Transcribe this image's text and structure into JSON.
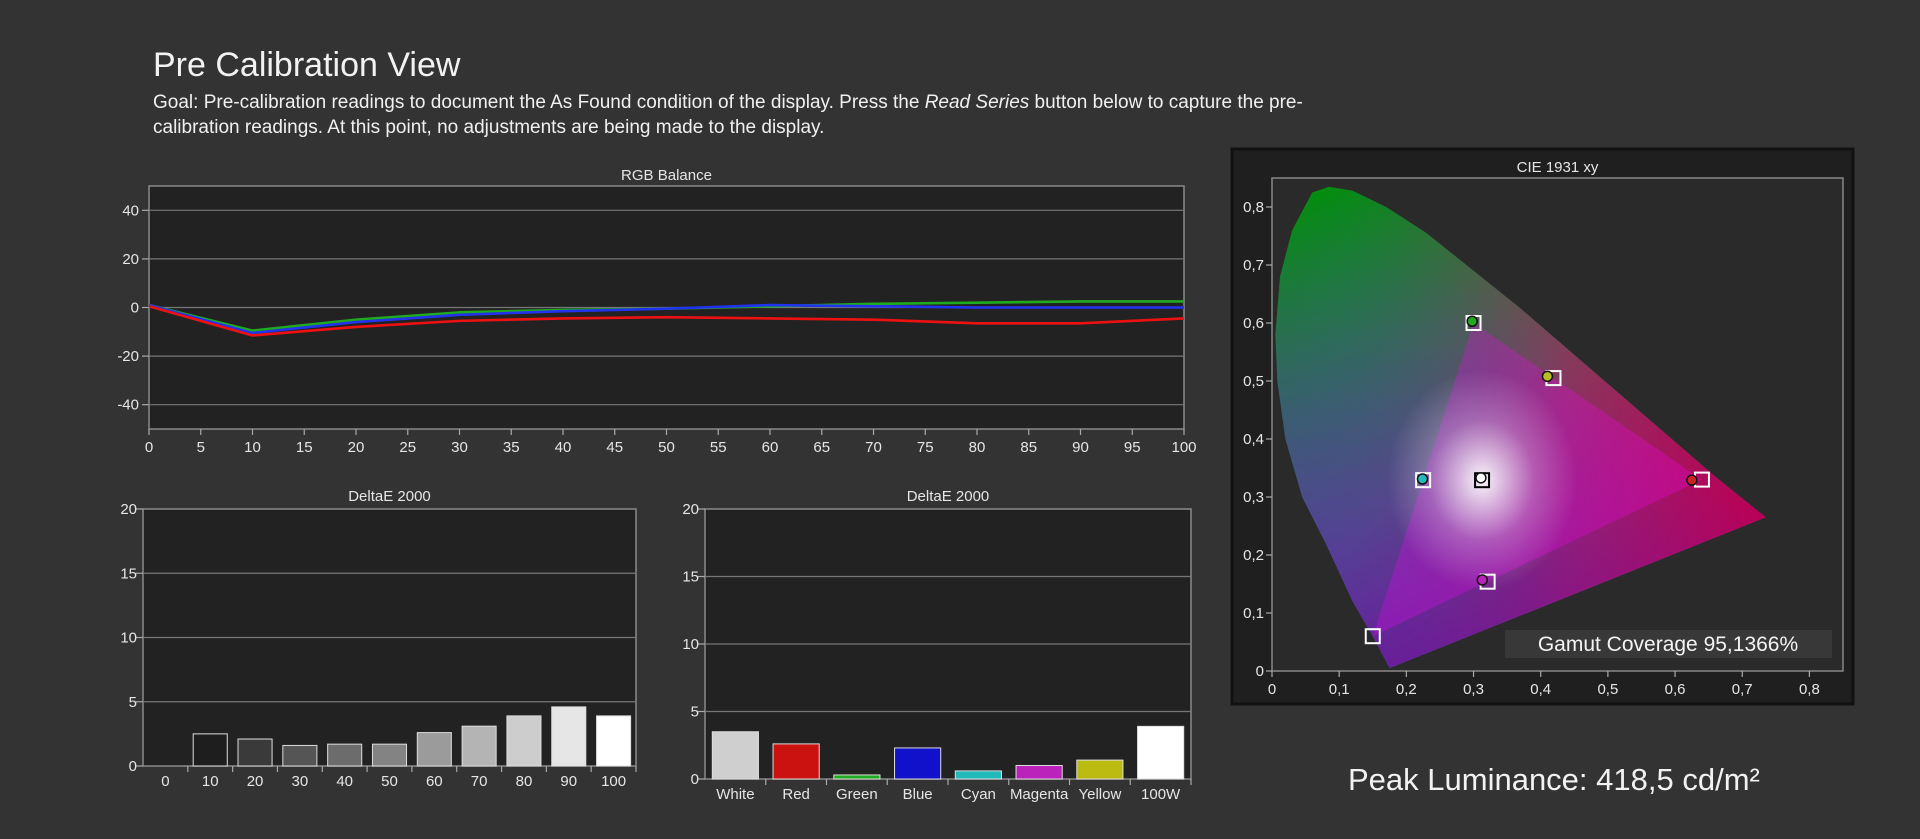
{
  "header": {
    "title": "Pre Calibration View",
    "goal_prefix": "Goal: Pre-calibration readings to document the As Found condition of the display. Press the ",
    "goal_em": "Read Series",
    "goal_suffix": " button below to capture the pre-calibration readings. At this point, no adjustments are being made to the display."
  },
  "peak_luminance": "Peak Luminance: 418,5 cd/m²",
  "chart_data": [
    {
      "id": "rgb-balance",
      "type": "line",
      "title": "RGB Balance",
      "x": [
        0,
        10,
        20,
        30,
        40,
        50,
        60,
        70,
        80,
        90,
        100
      ],
      "xticks": [
        "0",
        "5",
        "10",
        "15",
        "20",
        "25",
        "30",
        "35",
        "40",
        "45",
        "50",
        "55",
        "60",
        "65",
        "70",
        "75",
        "80",
        "85",
        "90",
        "95",
        "100"
      ],
      "ylim": [
        -50,
        50
      ],
      "yticks": [
        40,
        20,
        0,
        -20,
        -40
      ],
      "series": [
        {
          "color": "#1faa1f",
          "values": [
            1,
            -9.5,
            -5,
            -2,
            -1,
            -0.5,
            0.5,
            1.5,
            2,
            2.5,
            2.5
          ]
        },
        {
          "color": "#2233ee",
          "values": [
            1,
            -10.5,
            -6,
            -3,
            -1.5,
            -0.5,
            1,
            0.5,
            0,
            0,
            0
          ]
        },
        {
          "color": "#ee1111",
          "values": [
            0.5,
            -11.5,
            -8,
            -5.5,
            -4.5,
            -4,
            -4.5,
            -5,
            -6.5,
            -6.5,
            -4.5
          ]
        }
      ]
    },
    {
      "id": "delta-gray",
      "type": "bar",
      "title": "DeltaE 2000",
      "categories": [
        "0",
        "10",
        "20",
        "30",
        "40",
        "50",
        "60",
        "70",
        "80",
        "90",
        "100"
      ],
      "values": [
        0,
        2.5,
        2.1,
        1.6,
        1.7,
        1.7,
        2.6,
        3.1,
        3.9,
        4.6,
        3.9
      ],
      "colors": [
        "#000000",
        "#1e1e1e",
        "#3a3a3a",
        "#555555",
        "#6c6c6c",
        "#838383",
        "#9b9b9b",
        "#b4b4b4",
        "#cdcdcd",
        "#e6e6e6",
        "#ffffff"
      ],
      "ylim": [
        0,
        20
      ],
      "yticks": [
        20,
        15,
        10,
        5,
        0
      ]
    },
    {
      "id": "delta-color",
      "type": "bar",
      "title": "DeltaE 2000",
      "categories": [
        "White",
        "Red",
        "Green",
        "Blue",
        "Cyan",
        "Magenta",
        "Yellow",
        "100W"
      ],
      "values": [
        3.5,
        2.6,
        0.3,
        2.3,
        0.6,
        1.0,
        1.4,
        3.9
      ],
      "colors": [
        "#cfcfcf",
        "#cc1111",
        "#22aa22",
        "#1111cc",
        "#22bbbb",
        "#bb22bb",
        "#bbbb11",
        "#ffffff"
      ],
      "ylim": [
        0,
        20
      ],
      "yticks": [
        20,
        15,
        10,
        5,
        0
      ]
    },
    {
      "id": "cie",
      "type": "scatter",
      "title": "CIE 1931 xy",
      "xlim": [
        0,
        0.85
      ],
      "ylim": [
        0,
        0.85
      ],
      "xticks": [
        "0",
        "0,1",
        "0,2",
        "0,3",
        "0,4",
        "0,5",
        "0,6",
        "0,7",
        "0,8"
      ],
      "yticks": [
        "0",
        "0,1",
        "0,2",
        "0,3",
        "0,4",
        "0,5",
        "0,6",
        "0,7",
        "0,8"
      ],
      "targets": [
        {
          "x": 0.64,
          "y": 0.33
        },
        {
          "x": 0.3,
          "y": 0.6
        },
        {
          "x": 0.15,
          "y": 0.06
        },
        {
          "x": 0.225,
          "y": 0.329
        },
        {
          "x": 0.321,
          "y": 0.154
        },
        {
          "x": 0.419,
          "y": 0.505
        },
        {
          "x": 0.3127,
          "y": 0.329
        }
      ],
      "measured": [
        {
          "x": 0.625,
          "y": 0.329,
          "color": "#cc2222"
        },
        {
          "x": 0.298,
          "y": 0.603,
          "color": "#22aa22"
        },
        {
          "x": 0.224,
          "y": 0.331,
          "color": "#22bbbb"
        },
        {
          "x": 0.313,
          "y": 0.157,
          "color": "#bb22bb"
        },
        {
          "x": 0.41,
          "y": 0.508,
          "color": "#bbbb22"
        },
        {
          "x": 0.311,
          "y": 0.333,
          "color": "#ffffff"
        }
      ],
      "gamut_coverage": "Gamut Coverage 95,1366%"
    }
  ]
}
